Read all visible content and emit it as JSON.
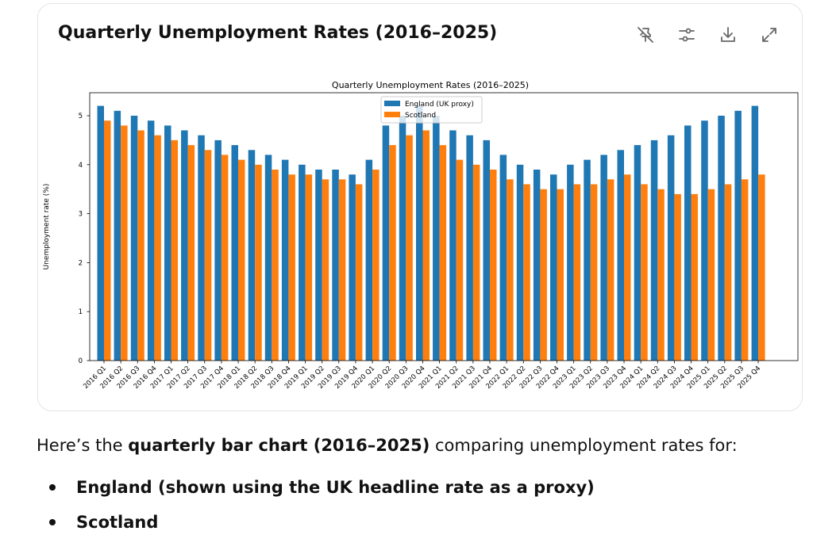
{
  "card": {
    "title": "Quarterly Unemployment Rates (2016–2025)",
    "tools": [
      {
        "name": "pin-off-icon"
      },
      {
        "name": "sliders-icon"
      },
      {
        "name": "download-icon"
      },
      {
        "name": "expand-icon"
      }
    ]
  },
  "chart_data": {
    "type": "bar",
    "title": "Quarterly Unemployment Rates (2016–2025)",
    "xlabel": "",
    "ylabel": "Unemployment rate (%)",
    "ylim": [
      0,
      5.45
    ],
    "yticks": [
      0,
      1,
      2,
      3,
      4,
      5
    ],
    "legend_position": "top-center",
    "categories": [
      "2016 Q1",
      "2016 Q2",
      "2016 Q3",
      "2016 Q4",
      "2017 Q1",
      "2017 Q2",
      "2017 Q3",
      "2017 Q4",
      "2018 Q1",
      "2018 Q2",
      "2018 Q3",
      "2018 Q4",
      "2019 Q1",
      "2019 Q2",
      "2019 Q3",
      "2019 Q4",
      "2020 Q1",
      "2020 Q2",
      "2020 Q3",
      "2020 Q4",
      "2021 Q1",
      "2021 Q2",
      "2021 Q3",
      "2021 Q4",
      "2022 Q1",
      "2022 Q2",
      "2022 Q3",
      "2022 Q4",
      "2023 Q1",
      "2023 Q2",
      "2023 Q3",
      "2023 Q4",
      "2024 Q1",
      "2024 Q2",
      "2024 Q3",
      "2024 Q4",
      "2025 Q1",
      "2025 Q2",
      "2025 Q3",
      "2025 Q4"
    ],
    "series": [
      {
        "name": "England (UK proxy)",
        "color": "#1f77b4",
        "values": [
          5.2,
          5.1,
          5.0,
          4.9,
          4.8,
          4.7,
          4.6,
          4.5,
          4.4,
          4.3,
          4.2,
          4.1,
          4.0,
          3.9,
          3.9,
          3.8,
          4.1,
          4.8,
          5.0,
          5.2,
          5.0,
          4.7,
          4.6,
          4.5,
          4.2,
          4.0,
          3.9,
          3.8,
          4.0,
          4.1,
          4.2,
          4.3,
          4.4,
          4.5,
          4.6,
          4.8,
          4.9,
          5.0,
          5.1,
          5.2
        ]
      },
      {
        "name": "Scotland",
        "color": "#ff7f0e",
        "values": [
          4.9,
          4.8,
          4.7,
          4.6,
          4.5,
          4.4,
          4.3,
          4.2,
          4.1,
          4.0,
          3.9,
          3.8,
          3.8,
          3.7,
          3.7,
          3.6,
          3.9,
          4.4,
          4.6,
          4.7,
          4.4,
          4.1,
          4.0,
          3.9,
          3.7,
          3.6,
          3.5,
          3.5,
          3.6,
          3.6,
          3.7,
          3.8,
          3.6,
          3.5,
          3.4,
          3.4,
          3.5,
          3.6,
          3.7,
          3.8
        ]
      }
    ]
  },
  "response": {
    "intro_pre": "Here’s the ",
    "intro_bold": "quarterly bar chart (2016–2025)",
    "intro_post": " comparing unemployment rates for:",
    "bullets": [
      "England (shown using the UK headline rate as a proxy)",
      "Scotland"
    ]
  }
}
